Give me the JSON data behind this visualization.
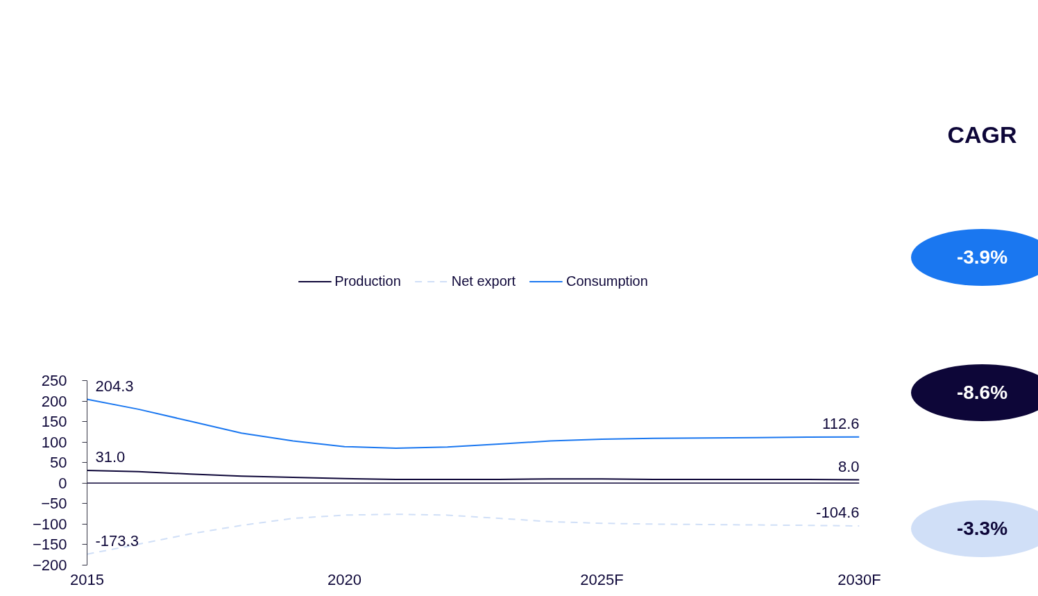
{
  "chart_data": {
    "type": "line",
    "x": [
      2015,
      2016,
      2017,
      2018,
      2019,
      2020,
      2021,
      2022,
      2023,
      2024,
      2025,
      2026,
      2027,
      2028,
      2029,
      2030
    ],
    "xlim": [
      2015,
      2030
    ],
    "xticks": [
      {
        "value": 2015,
        "label": "2015"
      },
      {
        "value": 2020,
        "label": "2020"
      },
      {
        "value": 2025,
        "label": "2025F"
      },
      {
        "value": 2030,
        "label": "2030F"
      }
    ],
    "ylim": [
      -200,
      250
    ],
    "yticks": [
      -200,
      -150,
      -100,
      -50,
      0,
      50,
      100,
      150,
      200,
      250
    ],
    "series": [
      {
        "name": "Production",
        "color": "#0d0638",
        "line_style": "solid",
        "values": [
          31.0,
          28,
          22,
          17,
          14,
          11,
          9,
          9,
          9,
          10,
          10,
          9,
          9,
          9,
          9,
          8.0
        ],
        "value_labels": [
          "31.0",
          null,
          null,
          null,
          null,
          null,
          null,
          null,
          null,
          null,
          null,
          null,
          null,
          null,
          null,
          "8.0"
        ]
      },
      {
        "name": "Net export",
        "color": "#d0dff7",
        "line_style": "dashed",
        "values": [
          -173.3,
          -149,
          -124,
          -103,
          -86,
          -78,
          -76,
          -78,
          -86,
          -94,
          -98,
          -100,
          -101,
          -102,
          -103,
          -104.6
        ],
        "value_labels": [
          "-173.3",
          null,
          null,
          null,
          null,
          null,
          null,
          null,
          null,
          null,
          null,
          null,
          null,
          null,
          null,
          "-104.6"
        ]
      },
      {
        "name": "Consumption",
        "color": "#1a77f0",
        "line_style": "solid",
        "values": [
          204.3,
          180,
          151,
          122,
          103,
          89,
          85,
          88,
          95,
          103,
          107,
          109,
          110,
          111,
          112,
          112.6
        ],
        "value_labels": [
          "204.3",
          null,
          null,
          null,
          null,
          null,
          null,
          null,
          null,
          null,
          null,
          null,
          null,
          null,
          null,
          "112.6"
        ]
      }
    ],
    "ref_lines": [
      {
        "axis": "y",
        "value": 0,
        "color": "#0d0638"
      }
    ],
    "annotations": [
      "CAGR",
      "-3.9%",
      "-8.6%",
      "-3.3%"
    ],
    "legend": "top",
    "grid": false,
    "marker": "none"
  }
}
